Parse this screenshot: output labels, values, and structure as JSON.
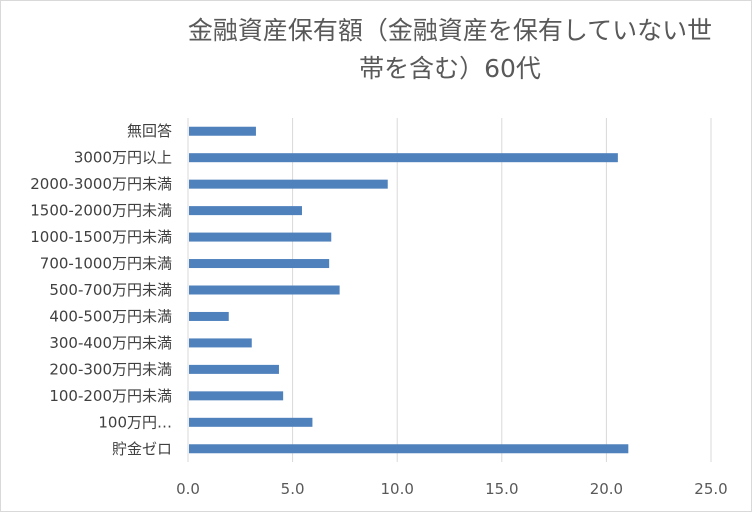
{
  "chart_data": {
    "type": "bar",
    "orientation": "horizontal",
    "title_lines": [
      "金融資産保有額（金融資産を保有していない世",
      "帯を含む）60代"
    ],
    "categories": [
      "無回答",
      "3000万円以上",
      "2000-3000万円未満",
      "1500-2000万円未満",
      "1000-1500万円未満",
      "700-1000万円未満",
      "500-700万円未満",
      "400-500万円未満",
      "300-400万円未満",
      "200-300万円未満",
      "100-200万円未満",
      "100万円…",
      "貯金ゼロ"
    ],
    "values": [
      3.2,
      20.5,
      9.5,
      5.4,
      6.8,
      6.7,
      7.2,
      1.9,
      3.0,
      4.3,
      4.5,
      5.9,
      21.0
    ],
    "xlim": [
      0,
      25
    ],
    "xticks": [
      "0.0",
      "5.0",
      "10.0",
      "15.0",
      "20.0",
      "25.0"
    ],
    "xlabel": "",
    "ylabel": "",
    "grid": "vertical",
    "legend": "none",
    "bar_color": "#4f81bd",
    "grid_color": "#d9d9d9"
  }
}
